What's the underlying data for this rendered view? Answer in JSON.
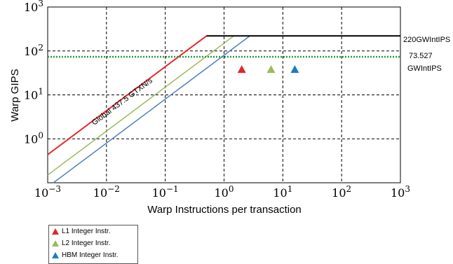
{
  "chart_data": {
    "type": "line",
    "xlabel": "Warp Instructions per transaction",
    "ylabel": "Warp GIPS",
    "xscale": "log",
    "yscale": "log",
    "xlim": [
      0.001,
      1000
    ],
    "ylim": [
      0.1,
      1000
    ],
    "grid": true,
    "x_ticks": [
      0.001,
      0.01,
      0.1,
      1,
      10,
      100,
      1000
    ],
    "y_ticks": [
      1,
      10,
      100,
      1000
    ],
    "x_tick_labels": [
      {
        "base": "10",
        "exp": "−3"
      },
      {
        "base": "10",
        "exp": "−2"
      },
      {
        "base": "10",
        "exp": "−1"
      },
      {
        "base": "10",
        "exp": "0"
      },
      {
        "base": "10",
        "exp": "1"
      },
      {
        "base": "10",
        "exp": "2"
      },
      {
        "base": "10",
        "exp": "3"
      }
    ],
    "y_tick_labels": [
      {
        "base": "10",
        "exp": "0"
      },
      {
        "base": "10",
        "exp": "1"
      },
      {
        "base": "10",
        "exp": "2"
      },
      {
        "base": "10",
        "exp": "3"
      }
    ],
    "roof": {
      "value": 220,
      "x_start": 0.5,
      "color": "#000000",
      "label": "220GWIntIPS"
    },
    "secondary_ceiling": {
      "value": 73.527,
      "color": "#2e9a3e",
      "style": "dotted",
      "label_lines": [
        "73.527",
        "GWIntIPS"
      ]
    },
    "bandwidth_lines": [
      {
        "name": "Global",
        "slope_coef": 437.5,
        "color": "#e8292a",
        "x_start": 0.001,
        "x_end": 0.5,
        "label": "Global 437.5 GTXN/s"
      },
      {
        "name": "L2",
        "slope_coef": 150,
        "color": "#9bbb59",
        "x_start": 0.001,
        "x_end": 1.47
      },
      {
        "name": "HBM",
        "slope_coef": 80,
        "color": "#4f81bd",
        "x_start": 0.00125,
        "x_end": 2.75
      }
    ],
    "points": [
      {
        "name": "L1 Integer Instr.",
        "x": 2,
        "y": 38,
        "color": "#e3262a"
      },
      {
        "name": "L2 Integer Instr.",
        "x": 6.3,
        "y": 38,
        "color": "#9bbb59"
      },
      {
        "name": "HBM Integer Instr.",
        "x": 16,
        "y": 38,
        "color": "#1f7bbf"
      }
    ]
  },
  "legend": {
    "items": [
      {
        "label": "L1 Integer Instr.",
        "color": "#e3262a"
      },
      {
        "label": "L2 Integer Instr.",
        "color": "#9bbb59"
      },
      {
        "label": "HBM Integer Instr.",
        "color": "#1f7bbf"
      }
    ]
  }
}
